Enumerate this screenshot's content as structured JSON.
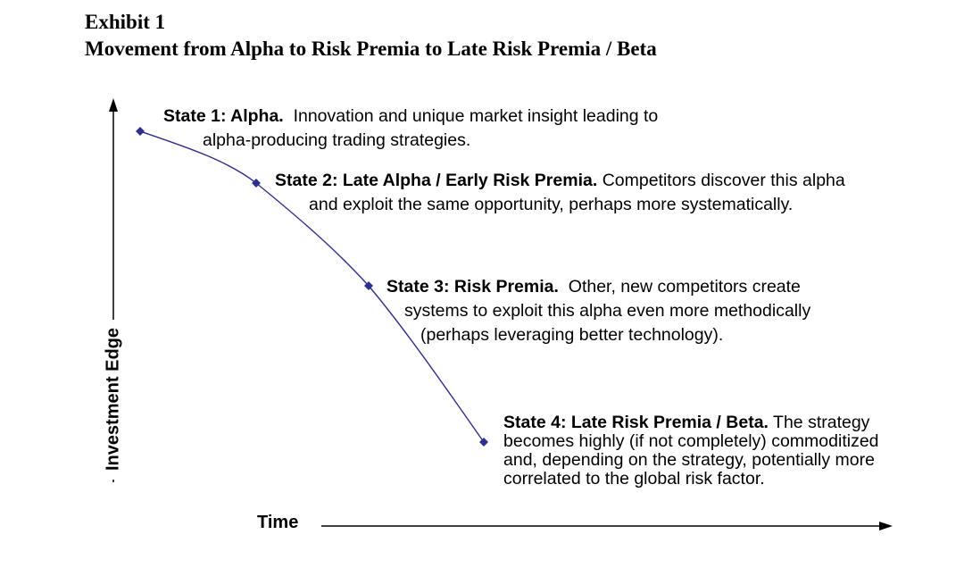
{
  "exhibit": {
    "label": "Exhibit 1",
    "title": "Movement from Alpha to Risk Premia to Late Risk Premia / Beta"
  },
  "axes": {
    "y_label": "Investment Edge",
    "x_label": "Time"
  },
  "states": [
    {
      "heading": "State 1: Alpha.",
      "lines": [
        "Innovation and unique market insight leading to",
        "alpha-producing trading strategies."
      ]
    },
    {
      "heading": "State 2: Late Alpha / Early Risk Premia.",
      "lines": [
        "Competitors discover this alpha",
        "and exploit the same opportunity, perhaps more systematically."
      ]
    },
    {
      "heading": "State 3: Risk Premia.",
      "lines": [
        "Other, new competitors create",
        "systems to exploit this alpha even more methodically",
        "(perhaps leveraging better technology)."
      ]
    },
    {
      "heading": "State 4: Late Risk Premia / Beta.",
      "lines": [
        "The strategy",
        "becomes highly (if not completely) commoditized",
        "and, depending on the strategy, potentially more",
        "correlated to the global risk factor."
      ]
    }
  ],
  "colors": {
    "curve": "#2f2f8f",
    "axis": "#000000"
  }
}
